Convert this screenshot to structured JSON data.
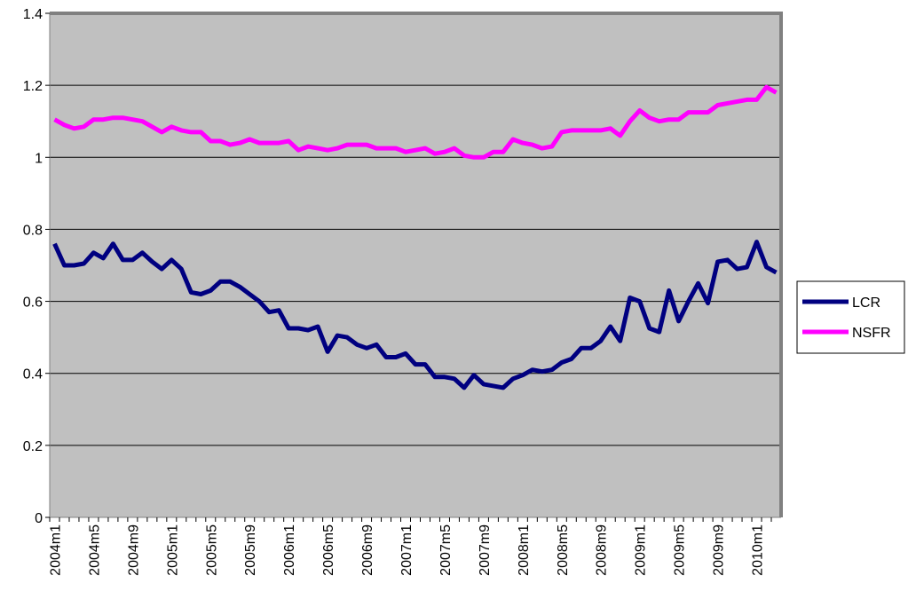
{
  "chart_data": {
    "type": "line",
    "categories": [
      "2004m1",
      null,
      null,
      null,
      "2004m5",
      null,
      null,
      null,
      "2004m9",
      null,
      null,
      null,
      "2005m1",
      null,
      null,
      null,
      "2005m5",
      null,
      null,
      null,
      "2005m9",
      null,
      null,
      null,
      "2006m1",
      null,
      null,
      null,
      "2006m5",
      null,
      null,
      null,
      "2006m9",
      null,
      null,
      null,
      "2007m1",
      null,
      null,
      null,
      "2007m5",
      null,
      null,
      null,
      "2007m9",
      null,
      null,
      null,
      "2008m1",
      null,
      null,
      null,
      "2008m5",
      null,
      null,
      null,
      "2008m9",
      null,
      null,
      null,
      "2009m1",
      null,
      null,
      null,
      "2009m5",
      null,
      null,
      null,
      "2009m9",
      null,
      null,
      null,
      "2010m1",
      null,
      null
    ],
    "series": [
      {
        "name": "LCR",
        "color": "#000080",
        "values": [
          0.76,
          0.7,
          0.7,
          0.705,
          0.735,
          0.72,
          0.76,
          0.715,
          0.715,
          0.735,
          0.71,
          0.69,
          0.715,
          0.69,
          0.625,
          0.62,
          0.63,
          0.655,
          0.655,
          0.64,
          0.62,
          0.6,
          0.57,
          0.575,
          0.525,
          0.525,
          0.52,
          0.53,
          0.46,
          0.505,
          0.5,
          0.48,
          0.47,
          0.48,
          0.445,
          0.445,
          0.455,
          0.425,
          0.425,
          0.39,
          0.39,
          0.385,
          0.36,
          0.395,
          0.37,
          0.365,
          0.36,
          0.385,
          0.395,
          0.41,
          0.405,
          0.41,
          0.43,
          0.44,
          0.47,
          0.47,
          0.49,
          0.53,
          0.49,
          0.61,
          0.6,
          0.525,
          0.515,
          0.63,
          0.545,
          0.6,
          0.65,
          0.595,
          0.71,
          0.715,
          0.69,
          0.695,
          0.765,
          0.695,
          0.68
        ]
      },
      {
        "name": "NSFR",
        "color": "#ff00ff",
        "values": [
          1.105,
          1.09,
          1.08,
          1.085,
          1.105,
          1.105,
          1.11,
          1.11,
          1.105,
          1.1,
          1.085,
          1.07,
          1.085,
          1.075,
          1.07,
          1.07,
          1.045,
          1.045,
          1.035,
          1.04,
          1.05,
          1.04,
          1.04,
          1.04,
          1.045,
          1.02,
          1.03,
          1.025,
          1.02,
          1.025,
          1.035,
          1.035,
          1.035,
          1.025,
          1.025,
          1.025,
          1.015,
          1.02,
          1.025,
          1.01,
          1.015,
          1.025,
          1.005,
          1.0,
          1.0,
          1.015,
          1.015,
          1.05,
          1.04,
          1.035,
          1.025,
          1.03,
          1.07,
          1.075,
          1.075,
          1.075,
          1.075,
          1.08,
          1.06,
          1.1,
          1.13,
          1.11,
          1.1,
          1.105,
          1.105,
          1.125,
          1.125,
          1.125,
          1.145,
          1.15,
          1.155,
          1.16,
          1.16,
          1.195,
          1.18
        ]
      }
    ],
    "ylim": [
      0,
      1.4
    ],
    "yticks": [
      0,
      0.2,
      0.4,
      0.6,
      0.8,
      1,
      1.2,
      1.4
    ],
    "grid": true,
    "legend": "right"
  }
}
